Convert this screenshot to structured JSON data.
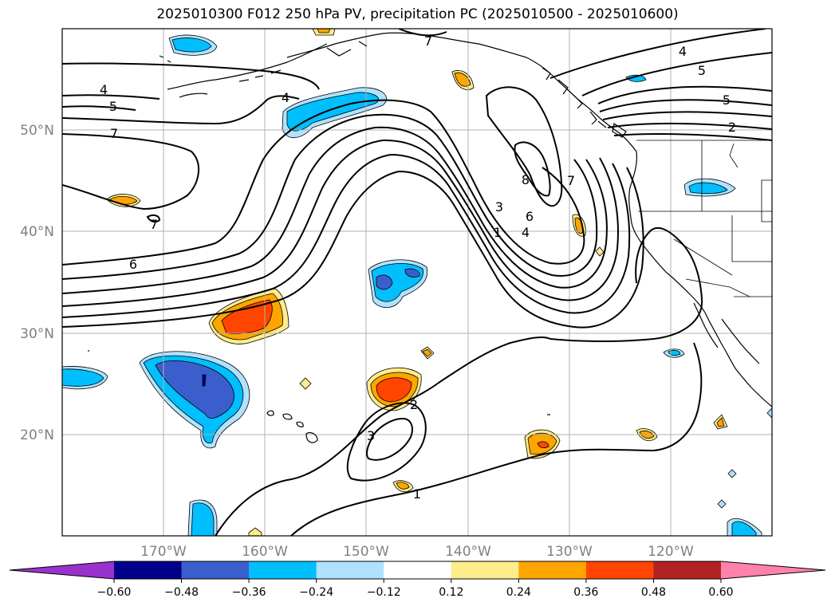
{
  "title": "2025010300 F012 250 hPa PV, precipitation PC (2025010500 - 2025010600)",
  "map": {
    "lat_labels": [
      "50°N",
      "40°N",
      "30°N",
      "20°N"
    ],
    "lon_labels": [
      "170°W",
      "160°W",
      "150°W",
      "140°W",
      "130°W",
      "120°W"
    ],
    "lon_range": [
      -180,
      -110
    ],
    "lat_range": [
      10,
      60
    ],
    "gridlines": true,
    "contour_labels": [
      "4",
      "5",
      "7",
      "7",
      "4",
      "6",
      "7",
      "8",
      "6",
      "4",
      "3",
      "1",
      "4",
      "5",
      "5",
      "2",
      "2",
      "3",
      "1",
      "7"
    ]
  },
  "colorbar": {
    "ticks": [
      "−0.60",
      "−0.48",
      "−0.36",
      "−0.24",
      "−0.12",
      "0.12",
      "0.24",
      "0.36",
      "0.48",
      "0.60"
    ],
    "colors": [
      "#9932cc",
      "#00008b",
      "#3a5fcd",
      "#00bfff",
      "#b0e2ff",
      "#ffffff",
      "#ffec8b",
      "#ffa500",
      "#ff4500",
      "#b22222",
      "#ff82ab"
    ]
  }
}
